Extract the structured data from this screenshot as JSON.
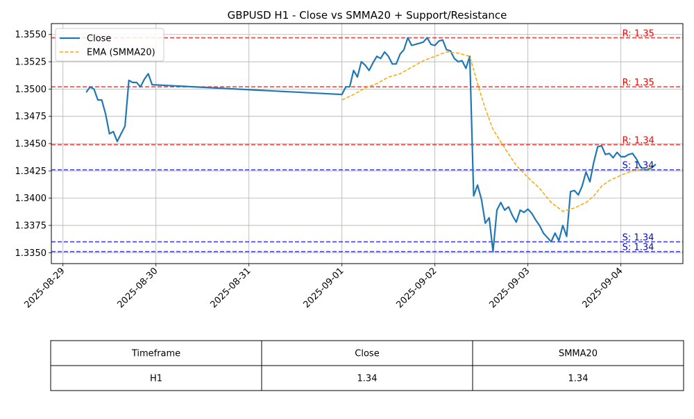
{
  "chart_data": {
    "type": "line",
    "title": "GBPUSD H1 - Close vs SMMA20 + Support/Resistance",
    "xlabel": "",
    "ylabel": "",
    "xlim": [
      "2025-08-28 21:00",
      "2025-09-04 16:00"
    ],
    "ylim": [
      1.334,
      1.356
    ],
    "x_ticks": [
      "2025-08-29",
      "2025-08-30",
      "2025-08-31",
      "2025-09-01",
      "2025-09-02",
      "2025-09-03",
      "2025-09-04"
    ],
    "y_ticks": [
      "1.3350",
      "1.3375",
      "1.3400",
      "1.3425",
      "1.3450",
      "1.3475",
      "1.3500",
      "1.3525",
      "1.3550"
    ],
    "grid": true,
    "legend_position": "top-left",
    "series": [
      {
        "name": "Close",
        "style": "solid",
        "color": "#1f77b4",
        "points": [
          [
            "2025-08-29 06:00",
            1.3497
          ],
          [
            "2025-08-29 07:00",
            1.3502
          ],
          [
            "2025-08-29 08:00",
            1.35
          ],
          [
            "2025-08-29 09:00",
            1.349
          ],
          [
            "2025-08-29 10:00",
            1.349
          ],
          [
            "2025-08-29 11:00",
            1.3477
          ],
          [
            "2025-08-29 12:00",
            1.3459
          ],
          [
            "2025-08-29 13:00",
            1.3461
          ],
          [
            "2025-08-29 14:00",
            1.3452
          ],
          [
            "2025-08-29 15:00",
            1.3459
          ],
          [
            "2025-08-29 16:00",
            1.3466
          ],
          [
            "2025-08-29 17:00",
            1.3508
          ],
          [
            "2025-08-29 18:00",
            1.3506
          ],
          [
            "2025-08-29 19:00",
            1.3506
          ],
          [
            "2025-08-29 20:00",
            1.3502
          ],
          [
            "2025-08-29 21:00",
            1.3509
          ],
          [
            "2025-08-29 22:00",
            1.3514
          ],
          [
            "2025-08-29 23:00",
            1.3504
          ],
          [
            "2025-09-01 00:00",
            1.3495
          ],
          [
            "2025-09-01 01:00",
            1.3502
          ],
          [
            "2025-09-01 02:00",
            1.3502
          ],
          [
            "2025-09-01 03:00",
            1.3517
          ],
          [
            "2025-09-01 04:00",
            1.3511
          ],
          [
            "2025-09-01 05:00",
            1.3525
          ],
          [
            "2025-09-01 06:00",
            1.3522
          ],
          [
            "2025-09-01 07:00",
            1.3517
          ],
          [
            "2025-09-01 08:00",
            1.3524
          ],
          [
            "2025-09-01 09:00",
            1.353
          ],
          [
            "2025-09-01 10:00",
            1.3528
          ],
          [
            "2025-09-01 11:00",
            1.3534
          ],
          [
            "2025-09-01 12:00",
            1.353
          ],
          [
            "2025-09-01 13:00",
            1.3523
          ],
          [
            "2025-09-01 14:00",
            1.3523
          ],
          [
            "2025-09-01 15:00",
            1.3532
          ],
          [
            "2025-09-01 16:00",
            1.3536
          ],
          [
            "2025-09-01 17:00",
            1.3547
          ],
          [
            "2025-09-01 18:00",
            1.354
          ],
          [
            "2025-09-01 19:00",
            1.3541
          ],
          [
            "2025-09-01 20:00",
            1.3542
          ],
          [
            "2025-09-01 21:00",
            1.3543
          ],
          [
            "2025-09-01 22:00",
            1.3547
          ],
          [
            "2025-09-01 23:00",
            1.3541
          ],
          [
            "2025-09-02 00:00",
            1.354
          ],
          [
            "2025-09-02 01:00",
            1.3544
          ],
          [
            "2025-09-02 02:00",
            1.3545
          ],
          [
            "2025-09-02 03:00",
            1.3536
          ],
          [
            "2025-09-02 04:00",
            1.3535
          ],
          [
            "2025-09-02 05:00",
            1.3528
          ],
          [
            "2025-09-02 06:00",
            1.3525
          ],
          [
            "2025-09-02 07:00",
            1.3526
          ],
          [
            "2025-09-02 08:00",
            1.3519
          ],
          [
            "2025-09-02 09:00",
            1.353
          ],
          [
            "2025-09-02 10:00",
            1.3402
          ],
          [
            "2025-09-02 11:00",
            1.3412
          ],
          [
            "2025-09-02 12:00",
            1.3399
          ],
          [
            "2025-09-02 13:00",
            1.3377
          ],
          [
            "2025-09-02 14:00",
            1.3382
          ],
          [
            "2025-09-02 15:00",
            1.3351
          ],
          [
            "2025-09-02 16:00",
            1.3389
          ],
          [
            "2025-09-02 17:00",
            1.3396
          ],
          [
            "2025-09-02 18:00",
            1.3389
          ],
          [
            "2025-09-02 19:00",
            1.3392
          ],
          [
            "2025-09-02 20:00",
            1.3384
          ],
          [
            "2025-09-02 21:00",
            1.3378
          ],
          [
            "2025-09-02 22:00",
            1.3389
          ],
          [
            "2025-09-02 23:00",
            1.3387
          ],
          [
            "2025-09-03 00:00",
            1.339
          ],
          [
            "2025-09-03 01:00",
            1.3386
          ],
          [
            "2025-09-03 02:00",
            1.338
          ],
          [
            "2025-09-03 03:00",
            1.3375
          ],
          [
            "2025-09-03 04:00",
            1.3368
          ],
          [
            "2025-09-03 05:00",
            1.3364
          ],
          [
            "2025-09-03 06:00",
            1.336
          ],
          [
            "2025-09-03 07:00",
            1.3368
          ],
          [
            "2025-09-03 08:00",
            1.3361
          ],
          [
            "2025-09-03 09:00",
            1.3375
          ],
          [
            "2025-09-03 10:00",
            1.3365
          ],
          [
            "2025-09-03 11:00",
            1.3406
          ],
          [
            "2025-09-03 12:00",
            1.3407
          ],
          [
            "2025-09-03 13:00",
            1.3403
          ],
          [
            "2025-09-03 14:00",
            1.3411
          ],
          [
            "2025-09-03 15:00",
            1.3424
          ],
          [
            "2025-09-03 16:00",
            1.3415
          ],
          [
            "2025-09-03 17:00",
            1.3433
          ],
          [
            "2025-09-03 18:00",
            1.3447
          ],
          [
            "2025-09-03 19:00",
            1.3448
          ],
          [
            "2025-09-03 20:00",
            1.344
          ],
          [
            "2025-09-03 21:00",
            1.3441
          ],
          [
            "2025-09-03 22:00",
            1.3437
          ],
          [
            "2025-09-03 23:00",
            1.3442
          ],
          [
            "2025-09-04 00:00",
            1.3438
          ],
          [
            "2025-09-04 01:00",
            1.3438
          ],
          [
            "2025-09-04 02:00",
            1.344
          ],
          [
            "2025-09-04 03:00",
            1.3441
          ],
          [
            "2025-09-04 04:00",
            1.3436
          ],
          [
            "2025-09-04 05:00",
            1.3429
          ],
          [
            "2025-09-04 06:00",
            1.3426
          ],
          [
            "2025-09-04 07:00",
            1.3426
          ],
          [
            "2025-09-04 08:00",
            1.3428
          ],
          [
            "2025-09-04 09:00",
            1.3431
          ]
        ]
      },
      {
        "name": "EMA (SMMA20)",
        "style": "dashed",
        "color": "#ffa500",
        "points": [
          [
            "2025-09-01 00:00",
            1.349
          ],
          [
            "2025-09-01 03:00",
            1.3495
          ],
          [
            "2025-09-01 06:00",
            1.3501
          ],
          [
            "2025-09-01 09:00",
            1.3505
          ],
          [
            "2025-09-01 12:00",
            1.3511
          ],
          [
            "2025-09-01 15:00",
            1.3514
          ],
          [
            "2025-09-01 18:00",
            1.352
          ],
          [
            "2025-09-01 21:00",
            1.3526
          ],
          [
            "2025-09-02 00:00",
            1.353
          ],
          [
            "2025-09-02 03:00",
            1.3534
          ],
          [
            "2025-09-02 06:00",
            1.3533
          ],
          [
            "2025-09-02 09:00",
            1.353
          ],
          [
            "2025-09-02 11:00",
            1.3505
          ],
          [
            "2025-09-02 13:00",
            1.3482
          ],
          [
            "2025-09-02 15:00",
            1.3463
          ],
          [
            "2025-09-02 18:00",
            1.3446
          ],
          [
            "2025-09-02 21:00",
            1.343
          ],
          [
            "2025-09-03 00:00",
            1.3419
          ],
          [
            "2025-09-03 03:00",
            1.3409
          ],
          [
            "2025-09-03 06:00",
            1.3396
          ],
          [
            "2025-09-03 09:00",
            1.3388
          ],
          [
            "2025-09-03 12:00",
            1.3391
          ],
          [
            "2025-09-03 15:00",
            1.3396
          ],
          [
            "2025-09-03 17:00",
            1.3402
          ],
          [
            "2025-09-03 19:00",
            1.3411
          ],
          [
            "2025-09-03 21:00",
            1.3416
          ],
          [
            "2025-09-04 00:00",
            1.3421
          ],
          [
            "2025-09-04 03:00",
            1.3425
          ],
          [
            "2025-09-04 06:00",
            1.3427
          ],
          [
            "2025-09-04 08:00",
            1.3428
          ]
        ]
      }
    ],
    "levels": [
      {
        "kind": "resistance",
        "value": 1.3547,
        "label": "R: 1.35",
        "color": "#ff0000"
      },
      {
        "kind": "resistance",
        "value": 1.3502,
        "label": "R: 1.35",
        "color": "#ff0000"
      },
      {
        "kind": "resistance",
        "value": 1.3449,
        "label": "R: 1.34",
        "color": "#ff0000"
      },
      {
        "kind": "support",
        "value": 1.3426,
        "label": "S: 1.34",
        "color": "#0000ff"
      },
      {
        "kind": "support",
        "value": 1.336,
        "label": "S: 1.34",
        "color": "#0000ff"
      },
      {
        "kind": "support",
        "value": 1.3351,
        "label": "S: 1.34",
        "color": "#0000ff"
      }
    ],
    "table": {
      "headers": [
        "Timeframe",
        "Close",
        "SMMA20"
      ],
      "rows": [
        [
          "H1",
          "1.34",
          "1.34"
        ]
      ]
    }
  }
}
